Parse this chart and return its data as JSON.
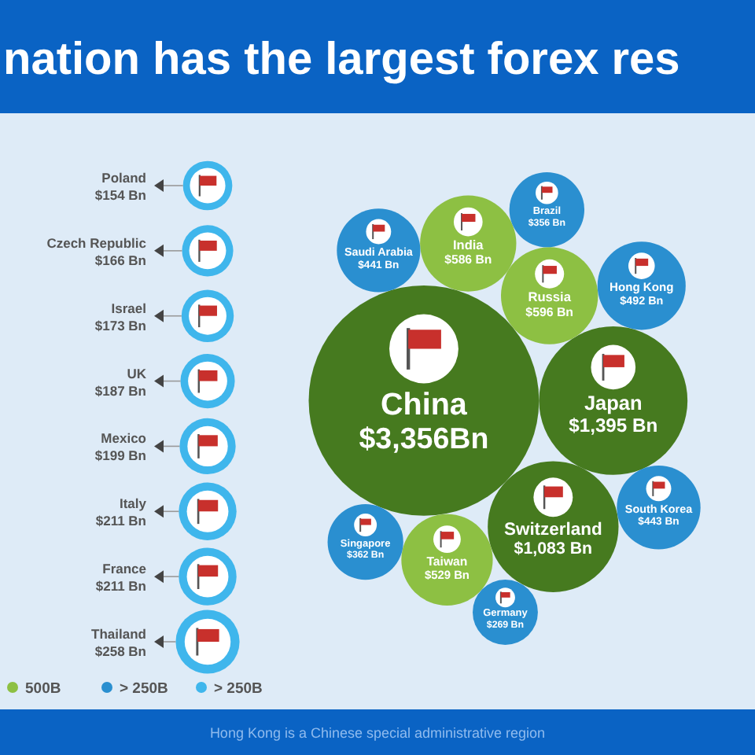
{
  "chart_data": {
    "type": "other",
    "title": "nation has the largest forex res",
    "categories": [
      "China",
      "Japan",
      "Switzerland",
      "Russia",
      "India",
      "Taiwan",
      "Hong Kong",
      "South Korea",
      "Saudi Arabia",
      "Singapore",
      "Brazil",
      "Germany",
      "Thailand",
      "France",
      "Italy",
      "Mexico",
      "UK",
      "Israel",
      "Czech Republic",
      "Poland"
    ],
    "series": [
      {
        "color": "#467a1f",
        "values": [
          3356,
          1395,
          1083,
          null,
          null,
          null,
          null,
          null,
          null,
          null,
          null,
          null,
          null,
          null,
          null,
          null,
          null,
          null,
          null,
          null
        ],
        "value_labels": [
          "$3,356Bn",
          "$1,395 Bn",
          "$1,083 Bn",
          null,
          null,
          null,
          null,
          null,
          null,
          null,
          null,
          null,
          null,
          null,
          null,
          null,
          null,
          null,
          null,
          null
        ]
      },
      {
        "name": "500B",
        "color": "#8dc043",
        "values": [
          null,
          null,
          null,
          596,
          586,
          529,
          null,
          null,
          null,
          null,
          null,
          null,
          null,
          null,
          null,
          null,
          null,
          null,
          null,
          null
        ],
        "value_labels": [
          null,
          null,
          null,
          "$596 Bn",
          "$586 Bn",
          "$529 Bn",
          null,
          null,
          null,
          null,
          null,
          null,
          null,
          null,
          null,
          null,
          null,
          null,
          null,
          null
        ]
      },
      {
        "name": "> 250B",
        "color": "#2a8fd0",
        "values": [
          null,
          null,
          null,
          null,
          null,
          null,
          492,
          443,
          441,
          362,
          356,
          269,
          null,
          null,
          null,
          null,
          null,
          null,
          null,
          null
        ],
        "value_labels": [
          null,
          null,
          null,
          null,
          null,
          null,
          "$492 Bn",
          "$443 Bn",
          "$441 Bn",
          "$362 Bn",
          "$356 Bn",
          "$269 Bn",
          null,
          null,
          null,
          null,
          null,
          null,
          null,
          null
        ]
      },
      {
        "name": "> 250B",
        "color": "#3fb6ec",
        "values": [
          null,
          null,
          null,
          null,
          null,
          null,
          null,
          null,
          null,
          null,
          null,
          null,
          258,
          211,
          211,
          199,
          187,
          173,
          166,
          154
        ],
        "value_labels": [
          null,
          null,
          null,
          null,
          null,
          null,
          null,
          null,
          null,
          null,
          null,
          null,
          "$258 Bn",
          "$211 Bn",
          "$211 Bn",
          "$199 Bn",
          "$187 Bn",
          "$173 Bn",
          "$166 Bn",
          "$154 Bn"
        ]
      }
    ],
    "legend": "bottom left",
    "annotations": [
      "Hong Kong is a Chinese special administrative region"
    ]
  }
}
